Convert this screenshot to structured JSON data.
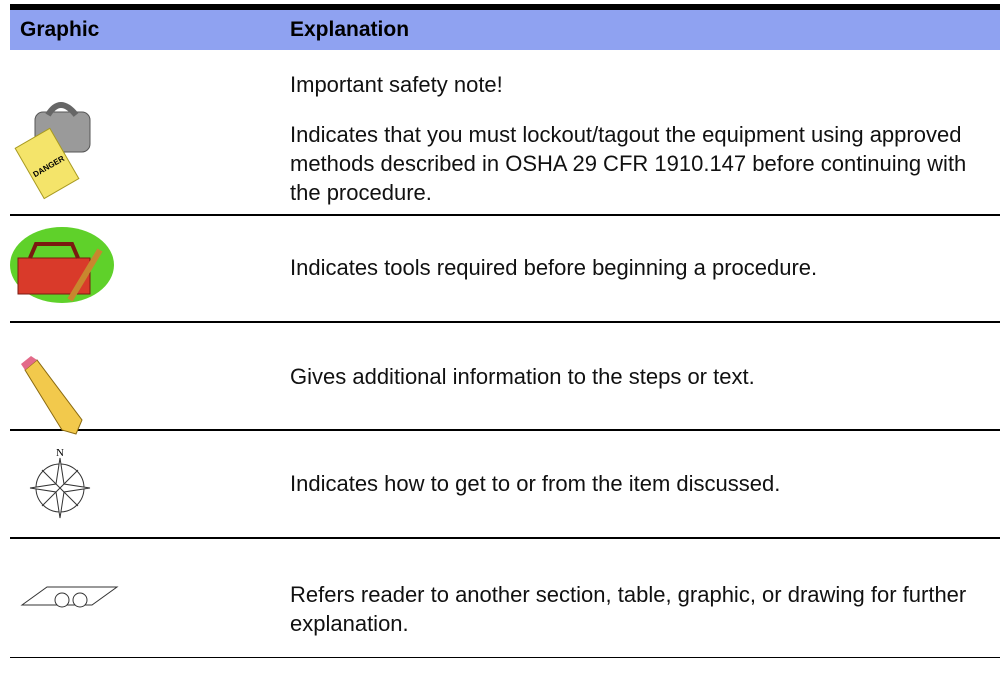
{
  "table": {
    "header": [
      "Graphic",
      "Explanation"
    ],
    "rows": [
      {
        "icon_text": "DANGER",
        "text": [
          "Important safety note!",
          "Indicates that you must lockout/tagout the equipment using approved methods described in OSHA 29 CFR 1910.147 before continuing with the procedure."
        ]
      },
      {
        "text": [
          "Indicates tools required before beginning a procedure."
        ]
      },
      {
        "text": [
          "Gives additional information to the steps or text."
        ]
      },
      {
        "icon_text": "N",
        "text": [
          "Indicates how to get to or from the item discussed."
        ]
      },
      {
        "text": [
          "Refers reader to another section, table, graphic, or drawing for further explanation."
        ]
      }
    ]
  }
}
